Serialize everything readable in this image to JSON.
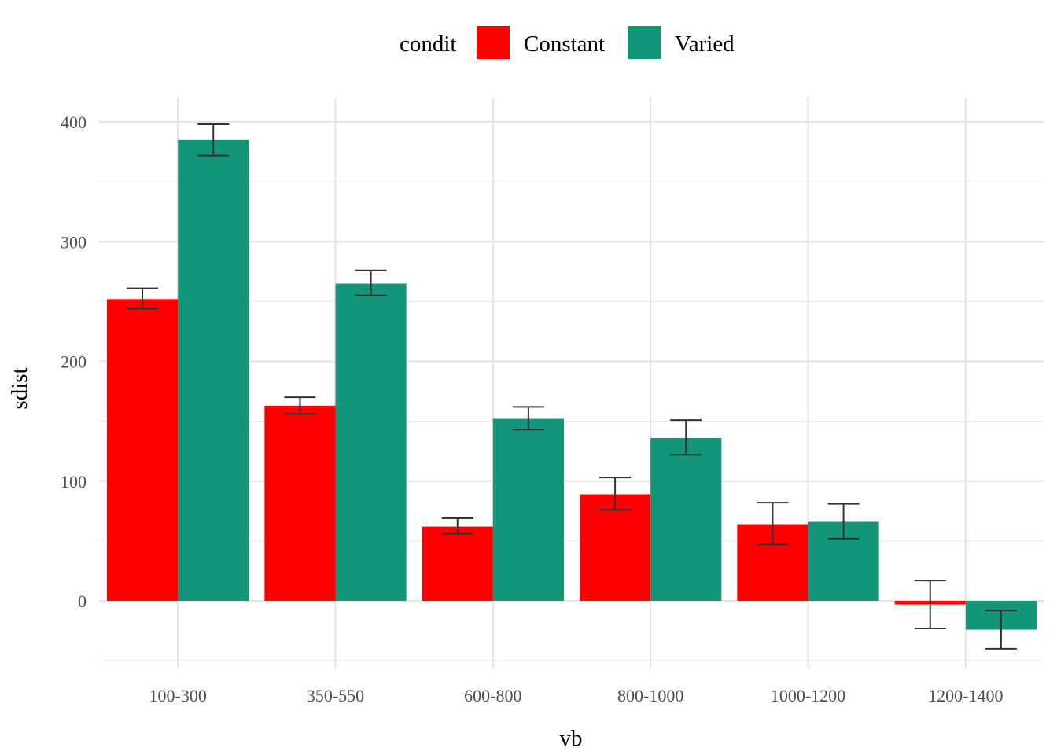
{
  "chart_data": {
    "type": "bar",
    "xlabel": "vb",
    "ylabel": "sdist",
    "categories": [
      "100-300",
      "350-550",
      "600-800",
      "800-1000",
      "1000-1200",
      "1200-1400"
    ],
    "legend": {
      "title": "condit",
      "position": "top"
    },
    "series": [
      {
        "name": "Constant",
        "color": "#ff0000",
        "values": [
          252,
          163,
          62,
          89,
          64,
          -3
        ],
        "error_low": [
          244,
          156,
          56,
          76,
          47,
          -23
        ],
        "error_high": [
          261,
          170,
          69,
          103,
          82,
          17
        ]
      },
      {
        "name": "Varied",
        "color": "#139579",
        "values": [
          385,
          265,
          152,
          136,
          66,
          -24
        ],
        "error_low": [
          372,
          255,
          143,
          122,
          52,
          -40
        ],
        "error_high": [
          398,
          276,
          162,
          151,
          81,
          -8
        ]
      }
    ],
    "yticks": [
      0,
      100,
      200,
      300,
      400
    ],
    "ylim": [
      -50,
      420
    ],
    "grid": true
  }
}
